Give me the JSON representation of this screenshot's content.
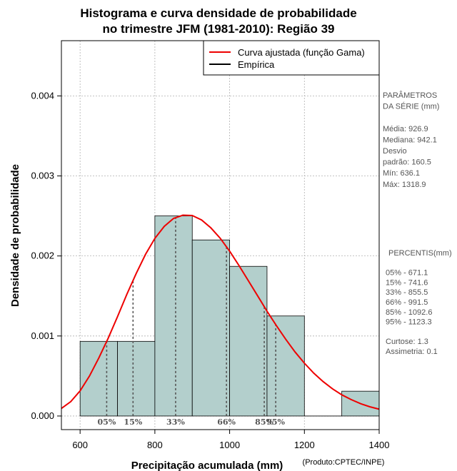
{
  "chart_data": {
    "type": "bar",
    "title_lines": [
      "Histograma e curva densidade de probabilidade",
      "no trimestre JFM (1981-2010): Região 39"
    ],
    "xlabel": "Precipitação acumulada (mm)",
    "ylabel": "Densidade de probabilidade",
    "credit": "(Produto:CPTEC/INPE)",
    "xlim": [
      550,
      1400
    ],
    "ylim": [
      -0.00017,
      0.00469
    ],
    "x_ticks": [
      {
        "value": 600,
        "label": "600"
      },
      {
        "value": 800,
        "label": "800"
      },
      {
        "value": 1000,
        "label": "1000"
      },
      {
        "value": 1200,
        "label": "1200"
      },
      {
        "value": 1400,
        "label": "1400"
      }
    ],
    "y_ticks": [
      {
        "value": 0,
        "label": "0.000"
      },
      {
        "value": 0.001,
        "label": "0.001"
      },
      {
        "value": 0.002,
        "label": "0.002"
      },
      {
        "value": 0.003,
        "label": "0.003"
      },
      {
        "value": 0.004,
        "label": "0.004"
      }
    ],
    "bins": [
      {
        "start": 600,
        "end": 700,
        "density": 0.000933
      },
      {
        "start": 700,
        "end": 800,
        "density": 0.000933
      },
      {
        "start": 800,
        "end": 900,
        "density": 0.0025
      },
      {
        "start": 900,
        "end": 1000,
        "density": 0.0022
      },
      {
        "start": 1000,
        "end": 1100,
        "density": 0.00187
      },
      {
        "start": 1100,
        "end": 1200,
        "density": 0.00125
      },
      {
        "start": 1200,
        "end": 1300,
        "density": 0
      },
      {
        "start": 1300,
        "end": 1400,
        "density": 0.00031
      }
    ],
    "curve": {
      "name": "Curva ajustada (função Gama)",
      "points": [
        [
          550,
          9.5e-05
        ],
        [
          575,
          0.00018
        ],
        [
          600,
          0.000315
        ],
        [
          625,
          0.0005
        ],
        [
          650,
          0.000725
        ],
        [
          675,
          0.00097
        ],
        [
          700,
          0.00124
        ],
        [
          725,
          0.00152
        ],
        [
          750,
          0.00178
        ],
        [
          775,
          0.00202
        ],
        [
          800,
          0.00222
        ],
        [
          825,
          0.00237
        ],
        [
          850,
          0.00247
        ],
        [
          875,
          0.00251
        ],
        [
          900,
          0.002505
        ],
        [
          925,
          0.00245
        ],
        [
          950,
          0.00235
        ],
        [
          975,
          0.00222
        ],
        [
          1000,
          0.00206
        ],
        [
          1025,
          0.00188
        ],
        [
          1050,
          0.00169
        ],
        [
          1075,
          0.0015
        ],
        [
          1100,
          0.00131
        ],
        [
          1125,
          0.00113
        ],
        [
          1150,
          0.00096
        ],
        [
          1175,
          0.0008
        ],
        [
          1200,
          0.00066
        ],
        [
          1225,
          0.000535
        ],
        [
          1250,
          0.00043
        ],
        [
          1275,
          0.00034
        ],
        [
          1300,
          0.000265
        ],
        [
          1325,
          0.000205
        ],
        [
          1350,
          0.000155
        ],
        [
          1375,
          0.000115
        ],
        [
          1400,
          8.5e-05
        ]
      ]
    },
    "empirical_label": "Empírica",
    "percentiles": [
      {
        "label": "05%",
        "value": 671.1
      },
      {
        "label": "15%",
        "value": 741.6
      },
      {
        "label": "33%",
        "value": 855.5
      },
      {
        "label": "66%",
        "value": 991.5
      },
      {
        "label": "85%",
        "value": 1092.6
      },
      {
        "label": "95%",
        "value": 1123.3
      }
    ],
    "grid": true,
    "legend_position": "top-right",
    "colors": {
      "bar_fill": "#b3cfcc",
      "curve": "#ee0000",
      "grid": "#b0b0b0",
      "percentile_line": "#555555",
      "side_text": "#555555"
    }
  },
  "side_panel": {
    "params_lines": [
      "PARÂMETROS",
      " DA SÉRIE (mm)",
      "",
      "Média:  926.9",
      "Mediana:  942.1",
      "Desvio",
      "padrão:  160.5",
      "Mín:  636.1",
      "Máx:  1318.9"
    ],
    "percentis_lines": [
      "PERCENTIS(mm)",
      "",
      "05% -   671.1",
      "15% -   741.6",
      "33% -   855.5",
      "66% -   991.5",
      "85% -   1092.6",
      "95% -   1123.3",
      "",
      "Curtose:  1.3",
      "Assimetria:  0.1"
    ]
  }
}
